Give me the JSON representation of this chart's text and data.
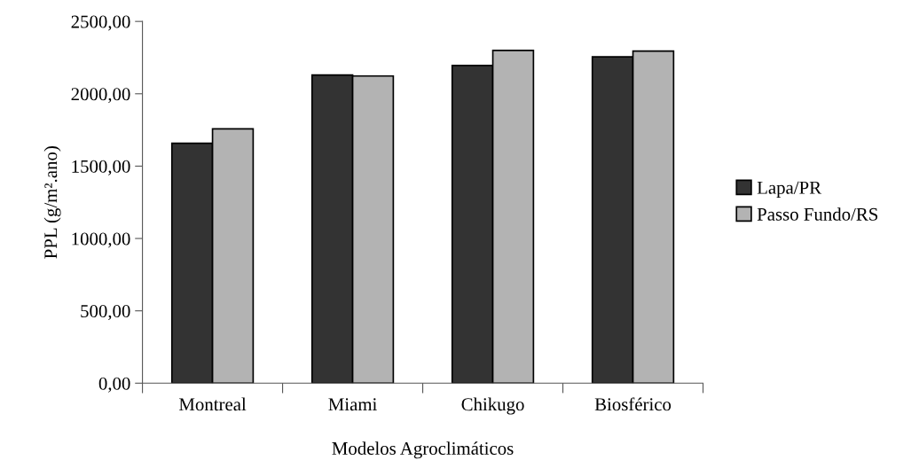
{
  "chart_data": {
    "type": "bar",
    "xlabel": "Modelos Agroclimáticos",
    "ylabel": "PPL (g/m².ano)",
    "categories": [
      "Montreal",
      "Miami",
      "Chikugo",
      "Biosférico"
    ],
    "series": [
      {
        "name": "Lapa/PR",
        "color": "#333333",
        "values": [
          1658,
          2130,
          2195,
          2255
        ]
      },
      {
        "name": "Passo Fundo/RS",
        "color": "#b3b3b3",
        "values": [
          1758,
          2123,
          2300,
          2295
        ]
      }
    ],
    "ylim": [
      0,
      2500
    ],
    "yticks": [
      {
        "value": 0,
        "label": "0,00"
      },
      {
        "value": 500,
        "label": "500,00"
      },
      {
        "value": 1000,
        "label": "1000,00"
      },
      {
        "value": 1500,
        "label": "1500,00"
      },
      {
        "value": 2000,
        "label": "2000,00"
      },
      {
        "value": 2500,
        "label": "2500,00"
      }
    ],
    "grid": false,
    "legend": "right"
  }
}
